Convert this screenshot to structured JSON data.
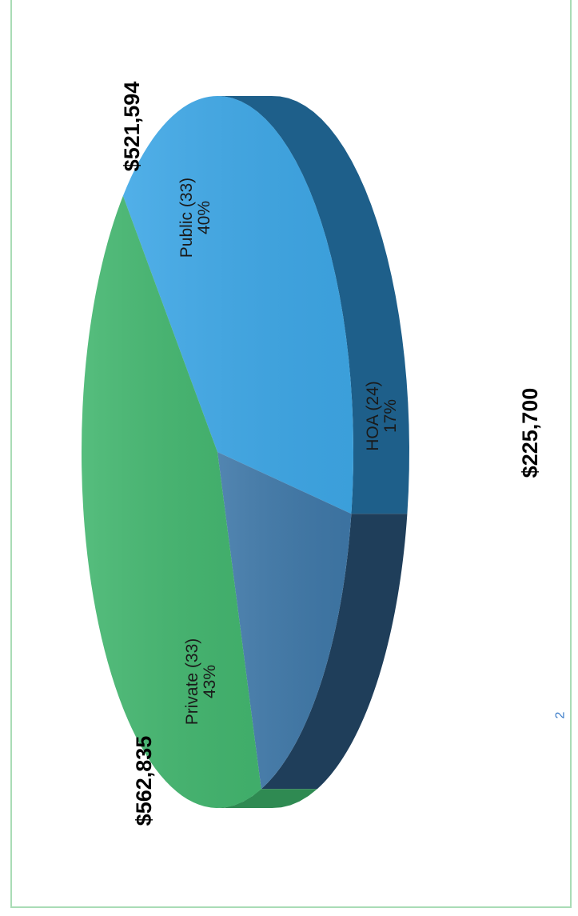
{
  "page_number": "2",
  "chart_data": {
    "type": "pie",
    "title": "",
    "three_d": true,
    "orientation": "rotated 90 degrees counter-clockwise",
    "slices": [
      {
        "label": "Public (33)",
        "percent_label": "40%",
        "percent": 40,
        "amount": "$521,594",
        "color": "#3ea7e6",
        "side_color": "#1e5f8a"
      },
      {
        "label": "HOA (24)",
        "percent_label": "17%",
        "percent": 17,
        "amount": "$225,700",
        "color": "#3f78a8",
        "side_color": "#1f3e5a"
      },
      {
        "label": "Private (33)",
        "percent_label": "43%",
        "percent": 43,
        "amount": "$562,835",
        "color": "#43b66f",
        "side_color": "#2f8a52"
      }
    ]
  }
}
